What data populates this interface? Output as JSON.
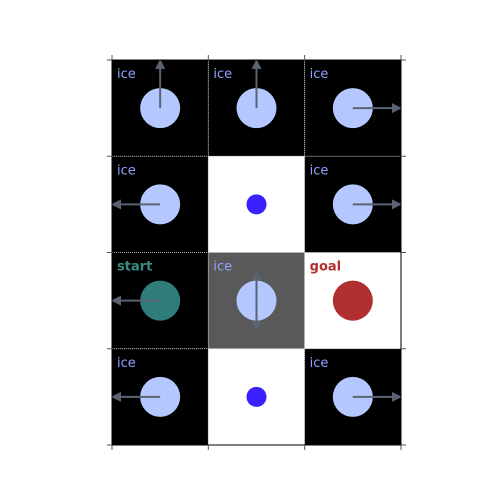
{
  "grid": {
    "rows": 4,
    "cols": 3,
    "cells": [
      {
        "row": 0,
        "col": 0,
        "type": "ice",
        "label": "ice",
        "marker": "ice",
        "arrow": "up"
      },
      {
        "row": 0,
        "col": 1,
        "type": "ice",
        "label": "ice",
        "marker": "ice",
        "arrow": "up"
      },
      {
        "row": 0,
        "col": 2,
        "type": "ice",
        "label": "ice",
        "marker": "ice",
        "arrow": "right"
      },
      {
        "row": 1,
        "col": 0,
        "type": "ice",
        "label": "ice",
        "marker": "ice",
        "arrow": "left"
      },
      {
        "row": 1,
        "col": 1,
        "type": "empty",
        "label": "",
        "marker": "dot",
        "arrow": null
      },
      {
        "row": 1,
        "col": 2,
        "type": "ice",
        "label": "ice",
        "marker": "ice",
        "arrow": "right"
      },
      {
        "row": 2,
        "col": 0,
        "type": "start",
        "label": "start",
        "marker": "start",
        "arrow": "left"
      },
      {
        "row": 2,
        "col": 1,
        "type": "ice-current",
        "label": "ice",
        "marker": "ice",
        "arrow": "updown"
      },
      {
        "row": 2,
        "col": 2,
        "type": "goal",
        "label": "goal",
        "marker": "goal",
        "arrow": null
      },
      {
        "row": 3,
        "col": 0,
        "type": "ice",
        "label": "ice",
        "marker": "ice",
        "arrow": "left"
      },
      {
        "row": 3,
        "col": 1,
        "type": "empty",
        "label": "",
        "marker": "dot",
        "arrow": null
      },
      {
        "row": 3,
        "col": 2,
        "type": "ice",
        "label": "ice",
        "marker": "ice",
        "arrow": "right"
      }
    ]
  },
  "colors": {
    "ice_bg": "#000000",
    "empty_bg": "#ffffff",
    "current_bg": "#595959",
    "goal_bg": "#ffffff",
    "start_bg": "#000000",
    "ice_circle": "#b4c8ff",
    "dot": "#3a1fff",
    "start_circle": "#2e7d7b",
    "goal_circle": "#b03030",
    "ice_label": "#8da3ff",
    "start_label": "#3a8a85",
    "goal_label": "#b03030",
    "arrow": "#5a6470",
    "grid_line": "#cccccc",
    "border": "#000000"
  }
}
